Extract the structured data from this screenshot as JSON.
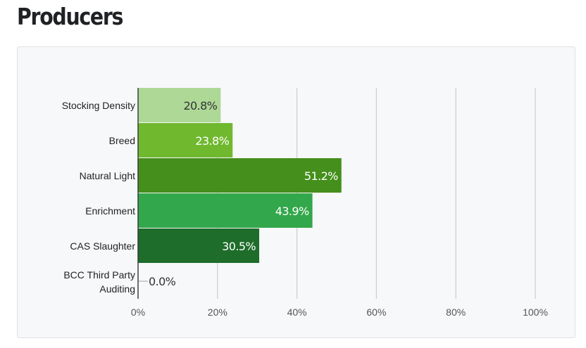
{
  "header": {
    "title": "Producers"
  },
  "chart_data": {
    "type": "bar",
    "orientation": "horizontal",
    "categories": [
      "Stocking Density",
      "Breed",
      "Natural Light",
      "Enrichment",
      "CAS Slaughter",
      "BCC Third Party Auditing"
    ],
    "values": [
      20.8,
      23.8,
      51.2,
      43.9,
      30.5,
      0.0
    ],
    "value_labels": [
      "20.8%",
      "23.8%",
      "51.2%",
      "43.9%",
      "30.5%",
      "0.0%"
    ],
    "bar_colors": [
      "#add896",
      "#70b92f",
      "#458f1c",
      "#33a74b",
      "#1e6d2a",
      "#b3b3b3"
    ],
    "label_colors": [
      "#333333",
      "#ffffff",
      "#ffffff",
      "#ffffff",
      "#ffffff",
      "#333333"
    ],
    "x_ticks": [
      "0%",
      "20%",
      "40%",
      "60%",
      "80%",
      "100%"
    ],
    "xlim": [
      0,
      100
    ],
    "grid": true,
    "legend": "none",
    "title": "",
    "xlabel": "",
    "ylabel": ""
  }
}
